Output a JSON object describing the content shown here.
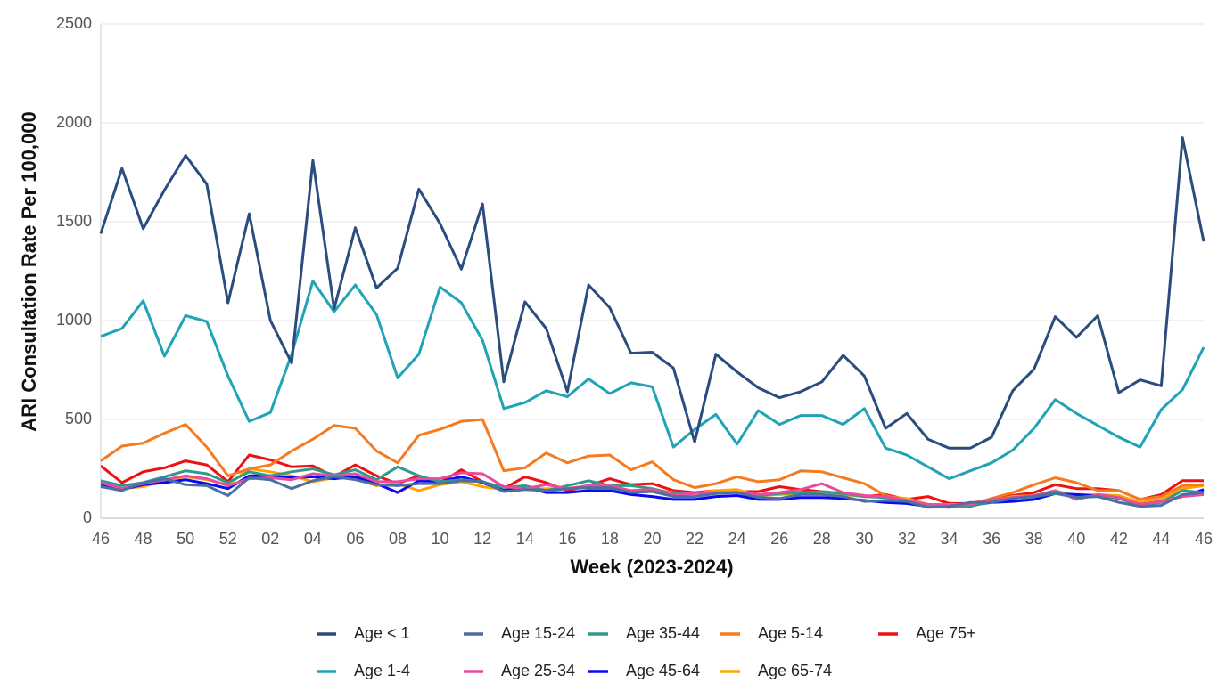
{
  "chart_data": {
    "type": "line",
    "x_label": "Week (2023-2024)",
    "y_label": "ARI Consultation Rate Per 100,000",
    "categories": [
      "46",
      null,
      "48",
      null,
      "50",
      null,
      "52",
      null,
      "02",
      null,
      "04",
      null,
      "06",
      null,
      "08",
      null,
      "10",
      null,
      "12",
      null,
      "14",
      null,
      "16",
      null,
      "18",
      null,
      "20",
      null,
      "22",
      null,
      "24",
      null,
      "26",
      null,
      "28",
      null,
      "30",
      null,
      "32",
      null,
      "34",
      null,
      "36",
      null,
      "38",
      null,
      "40",
      null,
      "42",
      null,
      "44",
      null,
      "46"
    ],
    "ylim": [
      0,
      2500
    ],
    "yticks": [
      0,
      500,
      1000,
      1500,
      2000,
      2500
    ],
    "grid": true,
    "series": [
      {
        "name": "Age < 1",
        "color": "#2b4c7e",
        "values": [
          1440,
          1770,
          1465,
          1660,
          1835,
          1690,
          1090,
          1540,
          1000,
          785,
          1810,
          1060,
          1470,
          1165,
          1265,
          1665,
          1490,
          1260,
          1590,
          690,
          1095,
          960,
          640,
          1180,
          1065,
          835,
          840,
          760,
          385,
          830,
          740,
          660,
          610,
          640,
          690,
          825,
          720,
          455,
          530,
          400,
          355,
          355,
          410,
          645,
          755,
          1020,
          915,
          1025,
          635,
          700,
          670,
          1925,
          1400
        ]
      },
      {
        "name": "Age 1-4",
        "color": "#1fa3b5",
        "values": [
          920,
          960,
          1100,
          820,
          1025,
          995,
          720,
          490,
          535,
          830,
          1200,
          1045,
          1180,
          1030,
          710,
          830,
          1170,
          1090,
          900,
          555,
          585,
          645,
          615,
          705,
          630,
          685,
          665,
          360,
          450,
          525,
          375,
          545,
          475,
          520,
          520,
          475,
          555,
          355,
          320,
          260,
          200,
          240,
          280,
          345,
          455,
          600,
          530,
          470,
          410,
          360,
          550,
          650,
          865
        ]
      },
      {
        "name": "Age 15-24",
        "color": "#4a6fa5",
        "values": [
          160,
          140,
          180,
          200,
          170,
          165,
          115,
          205,
          195,
          150,
          190,
          210,
          195,
          170,
          165,
          175,
          175,
          190,
          185,
          135,
          145,
          140,
          150,
          155,
          155,
          130,
          135,
          110,
          110,
          125,
          130,
          105,
          100,
          120,
          120,
          110,
          85,
          90,
          85,
          55,
          60,
          80,
          80,
          100,
          110,
          130,
          105,
          110,
          80,
          60,
          65,
          120,
          130
        ]
      },
      {
        "name": "Age 25-34",
        "color": "#e84c9a",
        "values": [
          180,
          150,
          175,
          195,
          215,
          200,
          165,
          200,
          205,
          195,
          225,
          215,
          225,
          185,
          185,
          200,
          200,
          230,
          225,
          160,
          150,
          170,
          150,
          165,
          165,
          140,
          145,
          120,
          125,
          130,
          130,
          120,
          130,
          145,
          175,
          130,
          115,
          110,
          90,
          70,
          65,
          70,
          95,
          105,
          115,
          140,
          95,
          120,
          105,
          70,
          85,
          110,
          120
        ]
      },
      {
        "name": "Age 35-44",
        "color": "#2d9a8c",
        "values": [
          190,
          165,
          180,
          210,
          240,
          225,
          180,
          235,
          215,
          235,
          250,
          220,
          245,
          195,
          260,
          215,
          185,
          195,
          185,
          155,
          165,
          140,
          165,
          190,
          165,
          165,
          150,
          125,
          130,
          130,
          130,
          115,
          125,
          130,
          135,
          125,
          110,
          105,
          90,
          65,
          60,
          60,
          85,
          100,
          110,
          125,
          105,
          115,
          100,
          65,
          80,
          140,
          130
        ]
      },
      {
        "name": "Age 45-64",
        "color": "#0a0aee",
        "values": [
          165,
          145,
          170,
          180,
          195,
          175,
          150,
          215,
          215,
          205,
          210,
          200,
          210,
          175,
          130,
          190,
          185,
          210,
          180,
          140,
          155,
          130,
          130,
          140,
          140,
          120,
          110,
          95,
          95,
          110,
          115,
          95,
          95,
          105,
          105,
          100,
          90,
          80,
          75,
          60,
          55,
          65,
          80,
          85,
          95,
          125,
          120,
          115,
          100,
          70,
          85,
          110,
          145
        ]
      },
      {
        "name": "Age 5-14",
        "color": "#f47b20",
        "values": [
          290,
          365,
          380,
          430,
          475,
          360,
          215,
          250,
          270,
          340,
          400,
          470,
          455,
          340,
          280,
          420,
          450,
          490,
          500,
          240,
          255,
          330,
          280,
          315,
          320,
          245,
          285,
          195,
          155,
          175,
          210,
          185,
          195,
          240,
          235,
          205,
          175,
          115,
          90,
          70,
          70,
          70,
          100,
          130,
          170,
          205,
          180,
          140,
          140,
          95,
          110,
          165,
          170
        ]
      },
      {
        "name": "Age 65-74",
        "color": "#ffa500",
        "values": [
          175,
          150,
          160,
          190,
          210,
          195,
          170,
          250,
          235,
          215,
          185,
          205,
          200,
          165,
          175,
          140,
          170,
          185,
          160,
          145,
          150,
          150,
          150,
          165,
          160,
          140,
          145,
          130,
          125,
          140,
          145,
          115,
          120,
          125,
          130,
          120,
          110,
          110,
          100,
          70,
          60,
          70,
          90,
          110,
          115,
          140,
          110,
          120,
          115,
          80,
          95,
          150,
          165
        ]
      },
      {
        "name": "Age 75+",
        "color": "#ee1111",
        "values": [
          265,
          180,
          235,
          255,
          290,
          270,
          185,
          320,
          295,
          260,
          265,
          210,
          270,
          215,
          175,
          215,
          180,
          245,
          185,
          150,
          210,
          180,
          140,
          165,
          200,
          170,
          175,
          140,
          130,
          140,
          135,
          135,
          160,
          145,
          135,
          125,
          110,
          120,
          95,
          110,
          75,
          75,
          95,
          115,
          130,
          170,
          150,
          150,
          140,
          95,
          120,
          190,
          190
        ]
      }
    ]
  }
}
